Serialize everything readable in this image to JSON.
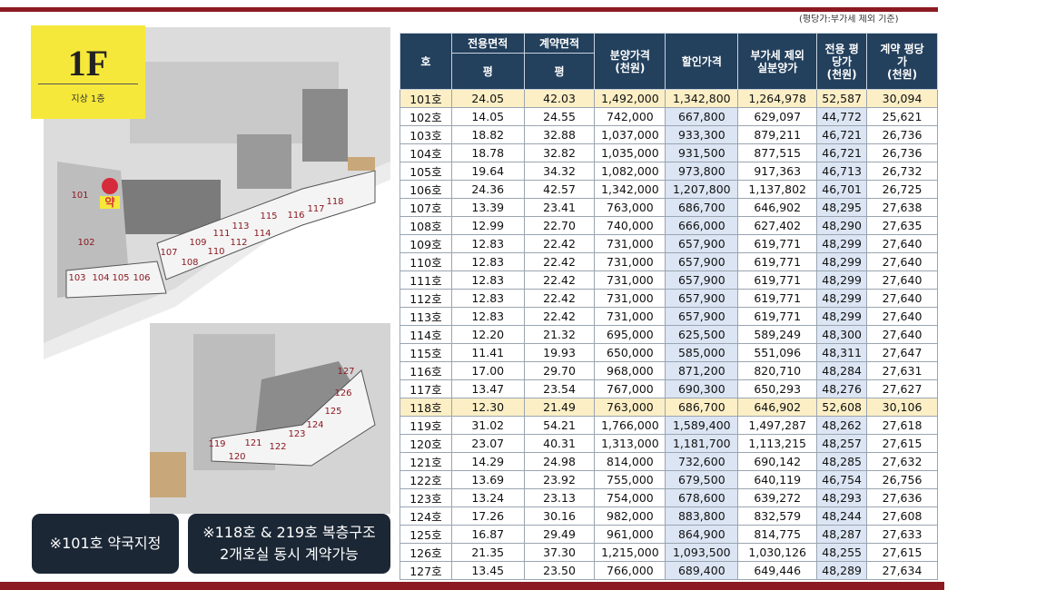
{
  "badge": {
    "floor": "1F",
    "caption": "지상 1층"
  },
  "note": "(평당가:부가세 제외 기준)",
  "notices": [
    "※101호 약국지정",
    "※118호 & 219호 복층구조\n2개호실 동시 계약가능"
  ],
  "plan": {
    "sign": "약",
    "unit_labels": [
      "101",
      "102",
      "103",
      "104",
      "105",
      "106",
      "107",
      "108",
      "109",
      "110",
      "111",
      "112",
      "113",
      "114",
      "115",
      "116",
      "117",
      "118",
      "119",
      "120",
      "121",
      "122",
      "123",
      "124",
      "125",
      "126",
      "127"
    ]
  },
  "table": {
    "header": [
      "호",
      "전용면적",
      "계약면적",
      "분양가격\n(천원)",
      "할인가격",
      "부가세 제외\n실분양가",
      "전용 평\n당가\n(천원)",
      "계약 평당\n가\n(천원)"
    ],
    "subheader": [
      "평",
      "평"
    ],
    "rows": [
      [
        "101호",
        "24.05",
        "42.03",
        "1,492,000",
        "1,342,800",
        "1,264,978",
        "52,587",
        "30,094"
      ],
      [
        "102호",
        "14.05",
        "24.55",
        "742,000",
        "667,800",
        "629,097",
        "44,772",
        "25,621"
      ],
      [
        "103호",
        "18.82",
        "32.88",
        "1,037,000",
        "933,300",
        "879,211",
        "46,721",
        "26,736"
      ],
      [
        "104호",
        "18.78",
        "32.82",
        "1,035,000",
        "931,500",
        "877,515",
        "46,721",
        "26,736"
      ],
      [
        "105호",
        "19.64",
        "34.32",
        "1,082,000",
        "973,800",
        "917,363",
        "46,713",
        "26,732"
      ],
      [
        "106호",
        "24.36",
        "42.57",
        "1,342,000",
        "1,207,800",
        "1,137,802",
        "46,701",
        "26,725"
      ],
      [
        "107호",
        "13.39",
        "23.41",
        "763,000",
        "686,700",
        "646,902",
        "48,295",
        "27,638"
      ],
      [
        "108호",
        "12.99",
        "22.70",
        "740,000",
        "666,000",
        "627,402",
        "48,290",
        "27,635"
      ],
      [
        "109호",
        "12.83",
        "22.42",
        "731,000",
        "657,900",
        "619,771",
        "48,299",
        "27,640"
      ],
      [
        "110호",
        "12.83",
        "22.42",
        "731,000",
        "657,900",
        "619,771",
        "48,299",
        "27,640"
      ],
      [
        "111호",
        "12.83",
        "22.42",
        "731,000",
        "657,900",
        "619,771",
        "48,299",
        "27,640"
      ],
      [
        "112호",
        "12.83",
        "22.42",
        "731,000",
        "657,900",
        "619,771",
        "48,299",
        "27,640"
      ],
      [
        "113호",
        "12.83",
        "22.42",
        "731,000",
        "657,900",
        "619,771",
        "48,299",
        "27,640"
      ],
      [
        "114호",
        "12.20",
        "21.32",
        "695,000",
        "625,500",
        "589,249",
        "48,300",
        "27,640"
      ],
      [
        "115호",
        "11.41",
        "19.93",
        "650,000",
        "585,000",
        "551,096",
        "48,311",
        "27,647"
      ],
      [
        "116호",
        "17.00",
        "29.70",
        "968,000",
        "871,200",
        "820,710",
        "48,284",
        "27,631"
      ],
      [
        "117호",
        "13.47",
        "23.54",
        "767,000",
        "690,300",
        "650,293",
        "48,276",
        "27,627"
      ],
      [
        "118호",
        "12.30",
        "21.49",
        "763,000",
        "686,700",
        "646,902",
        "52,608",
        "30,106"
      ],
      [
        "119호",
        "31.02",
        "54.21",
        "1,766,000",
        "1,589,400",
        "1,497,287",
        "48,262",
        "27,618"
      ],
      [
        "120호",
        "23.07",
        "40.31",
        "1,313,000",
        "1,181,700",
        "1,113,215",
        "48,257",
        "27,615"
      ],
      [
        "121호",
        "14.29",
        "24.98",
        "814,000",
        "732,600",
        "690,142",
        "48,285",
        "27,632"
      ],
      [
        "122호",
        "13.69",
        "23.92",
        "755,000",
        "679,500",
        "640,119",
        "46,754",
        "26,756"
      ],
      [
        "123호",
        "13.24",
        "23.13",
        "754,000",
        "678,600",
        "639,272",
        "48,293",
        "27,636"
      ],
      [
        "124호",
        "17.26",
        "30.16",
        "982,000",
        "883,800",
        "832,579",
        "48,244",
        "27,608"
      ],
      [
        "125호",
        "16.87",
        "29.49",
        "961,000",
        "864,900",
        "814,775",
        "48,287",
        "27,633"
      ],
      [
        "126호",
        "21.35",
        "37.30",
        "1,215,000",
        "1,093,500",
        "1,030,126",
        "48,255",
        "27,615"
      ],
      [
        "127호",
        "13.45",
        "23.50",
        "766,000",
        "689,400",
        "649,446",
        "48,289",
        "27,634"
      ]
    ]
  }
}
